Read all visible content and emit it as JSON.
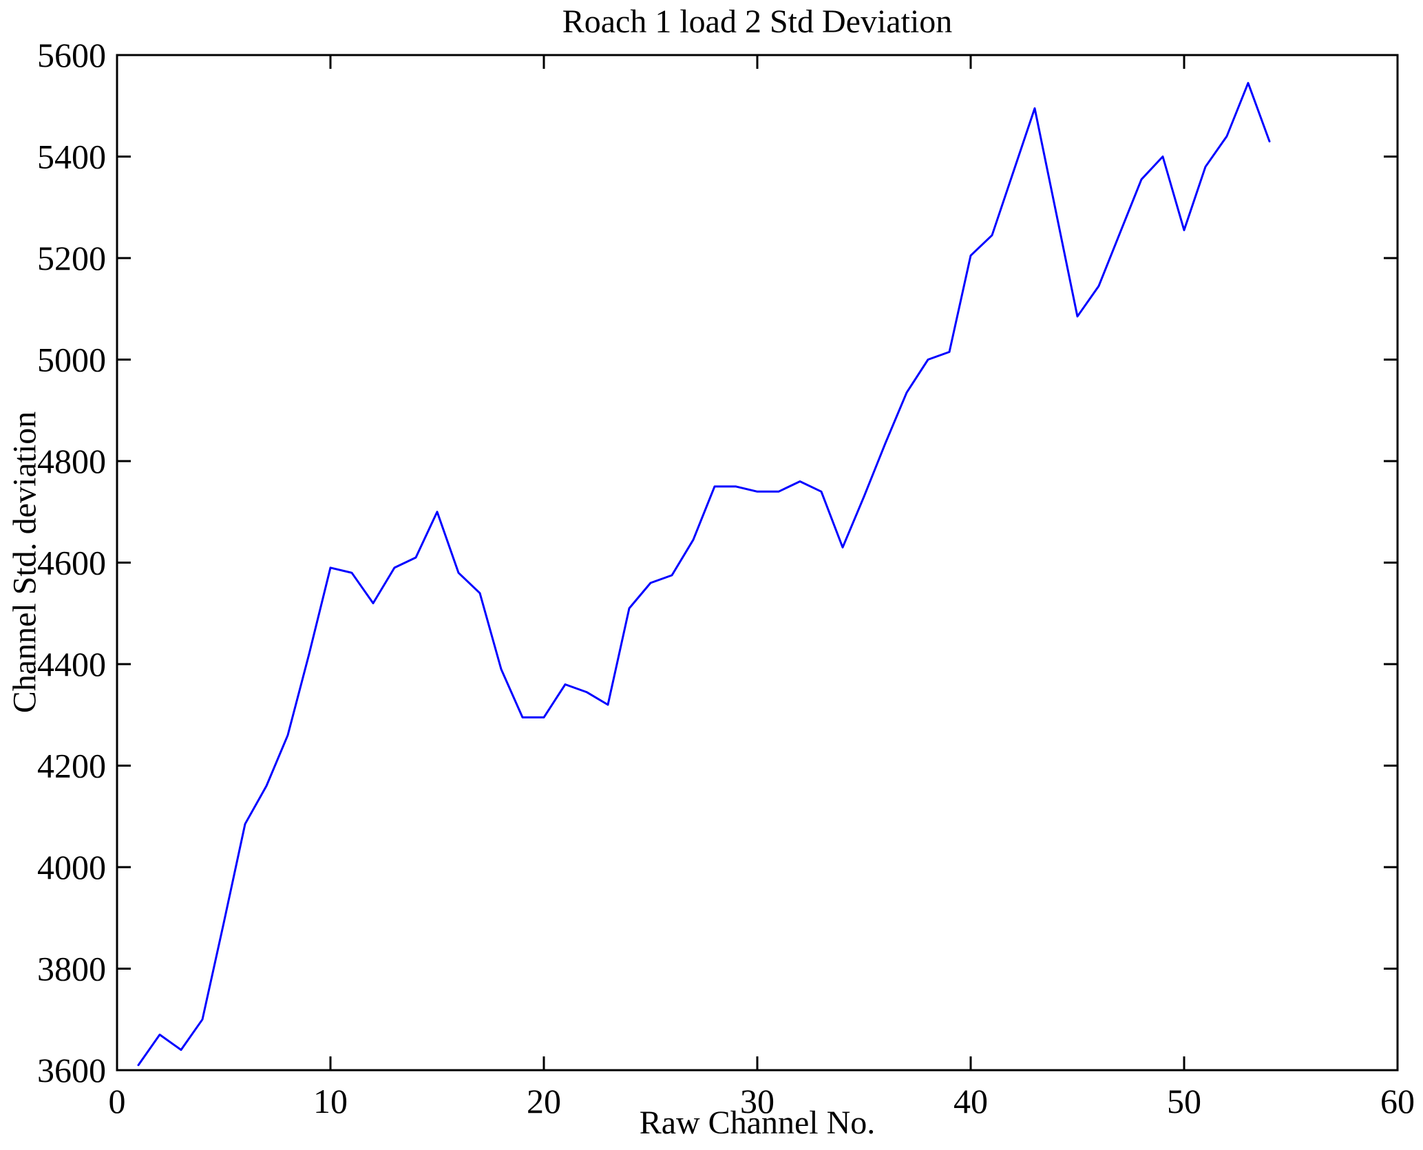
{
  "figure": {
    "background": "#FFFFFF",
    "axis_color": "#000000"
  },
  "chart_data": {
    "type": "line",
    "title": "Roach 1 load 2 Std Deviation",
    "xlabel": "Raw Channel No.",
    "ylabel": "Channel Std. deviation",
    "xlim": [
      0,
      60
    ],
    "ylim": [
      3600,
      5600
    ],
    "xticks": [
      0,
      10,
      20,
      30,
      40,
      50,
      60
    ],
    "yticks": [
      3600,
      3800,
      4000,
      4200,
      4400,
      4600,
      4800,
      5000,
      5200,
      5400,
      5600
    ],
    "grid": false,
    "x": [
      1,
      2,
      3,
      4,
      5,
      6,
      7,
      8,
      9,
      10,
      11,
      12,
      13,
      14,
      15,
      16,
      17,
      18,
      19,
      20,
      21,
      22,
      23,
      24,
      25,
      26,
      27,
      28,
      29,
      30,
      31,
      32,
      33,
      34,
      35,
      36,
      37,
      38,
      39,
      40,
      41,
      42,
      43,
      44,
      45,
      46,
      47,
      48,
      49,
      50,
      51,
      52,
      53,
      54
    ],
    "series": [
      {
        "name": "Channel Std. deviation",
        "color": "#0000FF",
        "values": [
          3610,
          3670,
          3640,
          3700,
          3890,
          4085,
          4160,
          4260,
          4420,
          4590,
          4580,
          4520,
          4590,
          4610,
          4700,
          4580,
          4540,
          4390,
          4295,
          4295,
          4360,
          4345,
          4320,
          4510,
          4560,
          4575,
          4645,
          4750,
          4750,
          4740,
          4740,
          4760,
          4740,
          4630,
          4730,
          4835,
          4935,
          5000,
          5015,
          5205,
          5245,
          5370,
          5495,
          5290,
          5085,
          5145,
          5250,
          5355,
          5400,
          5255,
          5380,
          5440,
          5545,
          5430
        ]
      }
    ]
  }
}
